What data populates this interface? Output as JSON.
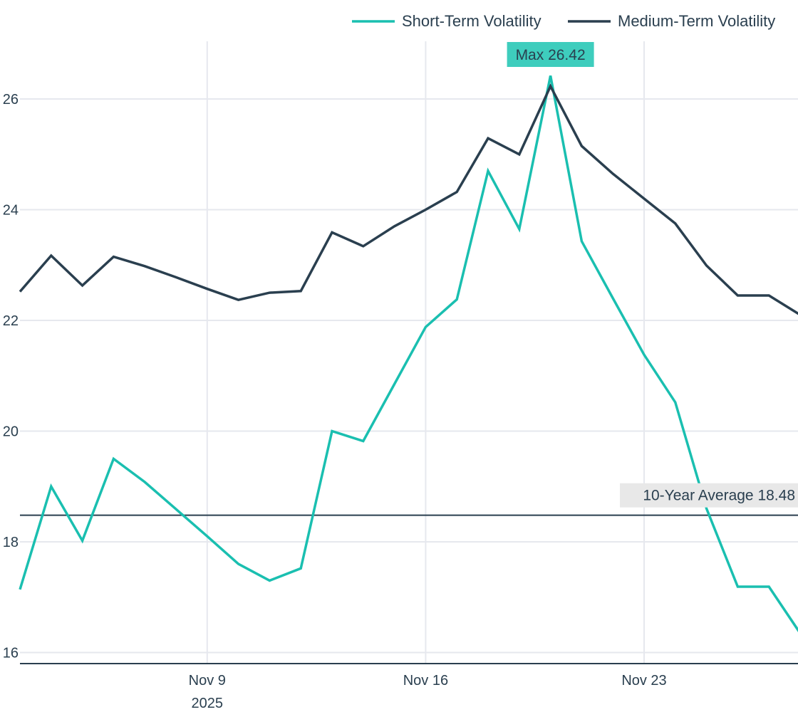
{
  "chart_data": {
    "type": "line",
    "title": "",
    "xlabel": "",
    "ylabel": "",
    "x_start": "2025-11-03",
    "ylim": [
      15.8,
      26.8
    ],
    "y_ticks": [
      16,
      18,
      20,
      22,
      24,
      26
    ],
    "y_tick_labels": [
      "16",
      "18",
      "20",
      "22",
      "24",
      "26"
    ],
    "x_ticks": [
      {
        "date": "2025-11-09",
        "label": "Nov 9",
        "sublabel": "2025"
      },
      {
        "date": "2025-11-16",
        "label": "Nov 16",
        "sublabel": ""
      },
      {
        "date": "2025-11-23",
        "label": "Nov 23",
        "sublabel": ""
      }
    ],
    "grid": true,
    "legend_position": "top-right",
    "series": [
      {
        "name": "Short-Term Volatility",
        "color": "#1abfb0",
        "values": [
          17.14,
          19.0,
          18.02,
          19.5,
          19.08,
          18.59,
          18.1,
          17.6,
          17.3,
          17.52,
          20.0,
          19.82,
          20.85,
          21.88,
          22.38,
          24.7,
          23.65,
          26.42,
          23.43,
          22.4,
          21.38,
          20.52,
          18.6,
          17.19,
          17.19,
          16.35
        ]
      },
      {
        "name": "Medium-Term Volatility",
        "color": "#2a3f4f",
        "values": [
          22.52,
          23.17,
          22.63,
          23.15,
          22.98,
          22.78,
          22.57,
          22.37,
          22.5,
          22.53,
          23.59,
          23.34,
          23.7,
          24.0,
          24.32,
          25.29,
          25.0,
          26.23,
          25.15,
          24.65,
          24.2,
          23.75,
          22.99,
          22.45,
          22.45,
          22.1
        ]
      }
    ],
    "reference_line": {
      "value": 18.48,
      "label": "10-Year Average 18.48",
      "color": "#2a3f4f"
    },
    "annotations": [
      {
        "label": "Max 26.42",
        "series": "Short-Term Volatility",
        "value": 26.42,
        "date": "2025-11-20",
        "background": "#3ecdbd"
      }
    ]
  }
}
